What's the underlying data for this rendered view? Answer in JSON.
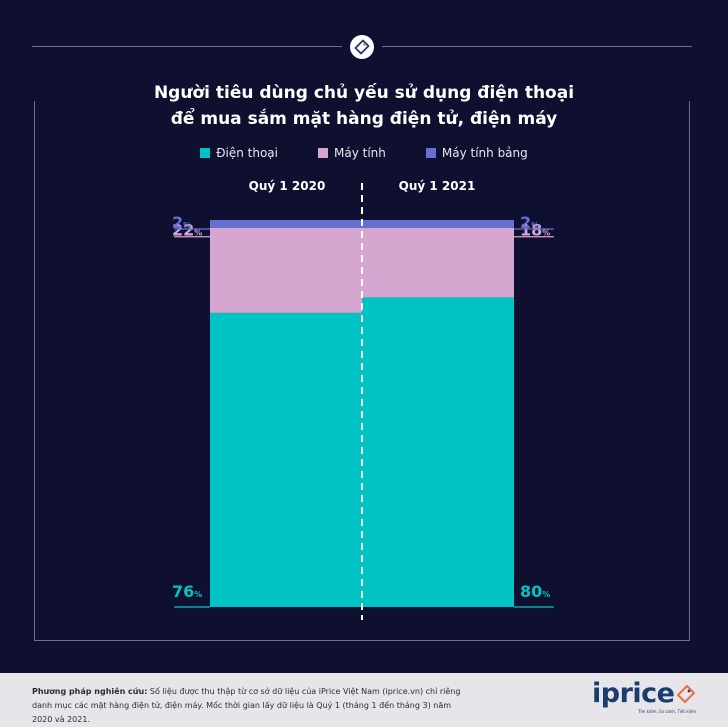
{
  "chart_data": {
    "type": "bar",
    "stacked": true,
    "orientation": "vertical",
    "title_lines": [
      "Người tiêu dùng chủ yếu sử dụng điện thoại",
      "để mua sắm mặt hàng điện tử, điện máy"
    ],
    "categories": [
      "Quý 1 2020",
      "Quý 1 2021"
    ],
    "series": [
      {
        "name": "Điện thoại",
        "color": "#00c4c4",
        "values": [
          76,
          80
        ]
      },
      {
        "name": "Máy tính",
        "color": "#d4a6d0",
        "values": [
          22,
          18
        ]
      },
      {
        "name": "Máy tính bảng",
        "color": "#6470d4",
        "values": [
          2,
          2
        ]
      }
    ],
    "value_suffix": "%",
    "ylim": [
      0,
      100
    ],
    "legend_position": "top-center",
    "grid": false
  },
  "footer": {
    "method_label": "Phương pháp nghiên cứu:",
    "method_text": " Số liệu được thu thập từ cơ sở dữ liệu của iPrice Việt Nam (iprice.vn) chỉ riêng danh mục các mặt hàng điện tử, điện máy. Mốc thời gian lấy dữ liệu là Quý 1 (tháng 1 đến tháng 3) năm 2020 và 2021."
  },
  "brand": {
    "name": "iprice",
    "tagline": "Tìm kiếm, So sánh, Tiết kiệm",
    "logo_icon": "price-tag-icon",
    "accent_color": "#e8734a"
  }
}
